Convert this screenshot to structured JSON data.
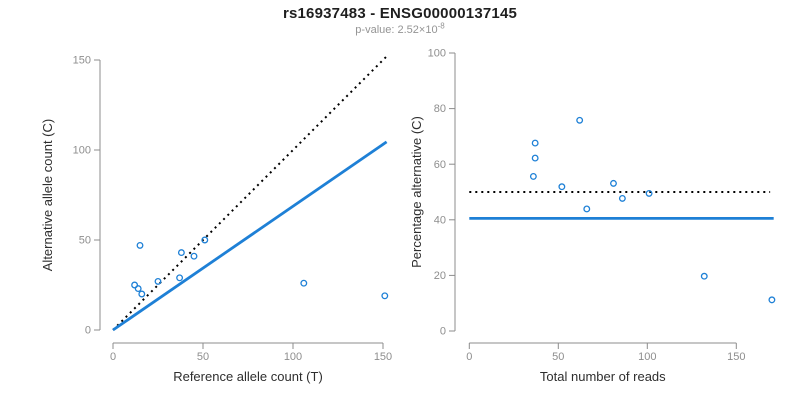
{
  "header": {
    "title": "rs16937483 - ENSG00000137145",
    "p_value_label": "p-value: 2.52×10",
    "p_value_exponent": "-8"
  },
  "theme": {
    "accent_blue": "#1E80D6",
    "dotted_black": "#000000",
    "axis_color": "#8C8C8C",
    "tick_label_color": "#8E8E8E",
    "axis_label_color": "#2E2E2E",
    "title_color": "#1F1F1F",
    "subtitle_color": "#949494",
    "background": "#FFFFFF"
  },
  "chart_data": [
    {
      "id": "ref-vs-alt-scatter",
      "type": "scatter",
      "xlabel": "Reference allele count (T)",
      "ylabel": "Alternative allele count (C)",
      "xticks": [
        0,
        50,
        100,
        150
      ],
      "yticks": [
        0,
        50,
        100,
        150
      ],
      "xlim": [
        0,
        152
      ],
      "ylim": [
        0,
        152
      ],
      "grid": false,
      "legend": "none",
      "point_color": "#1E80D6",
      "points": [
        [
          12,
          25
        ],
        [
          14,
          23
        ],
        [
          16,
          20
        ],
        [
          15,
          47
        ],
        [
          25,
          27
        ],
        [
          37,
          29
        ],
        [
          38,
          43
        ],
        [
          45,
          41
        ],
        [
          51,
          50
        ],
        [
          106,
          26
        ],
        [
          151,
          19
        ]
      ],
      "lines": [
        {
          "name": "identity-line",
          "style": "dotted",
          "color": "#000000",
          "from": [
            0,
            0
          ],
          "to": [
            152,
            152
          ]
        },
        {
          "name": "regression-line",
          "style": "solid",
          "color": "#1E80D6",
          "from": [
            0,
            0
          ],
          "to": [
            152,
            104.5
          ]
        }
      ]
    },
    {
      "id": "reads-vs-percentage-scatter",
      "type": "scatter",
      "xlabel": "Total number of reads",
      "ylabel": "Percentage alternative (C)",
      "xticks": [
        0,
        50,
        100,
        150
      ],
      "yticks": [
        0,
        20,
        40,
        60,
        80,
        100
      ],
      "xlim": [
        0,
        172
      ],
      "ylim": [
        0,
        100
      ],
      "grid": false,
      "legend": "none",
      "point_color": "#1E80D6",
      "points": [
        [
          37,
          67.6
        ],
        [
          37,
          62.2
        ],
        [
          36,
          55.6
        ],
        [
          62,
          75.8
        ],
        [
          52,
          51.9
        ],
        [
          66,
          43.9
        ],
        [
          81,
          53.1
        ],
        [
          86,
          47.7
        ],
        [
          101,
          49.5
        ],
        [
          132,
          19.7
        ],
        [
          170,
          11.2
        ]
      ],
      "lines": [
        {
          "name": "fifty-percent-line",
          "style": "dotted",
          "color": "#000000",
          "from": [
            0,
            50
          ],
          "to": [
            169,
            50
          ]
        },
        {
          "name": "mean-percentage-line",
          "style": "solid",
          "color": "#1E80D6",
          "from": [
            0,
            40.5
          ],
          "to": [
            171,
            40.5
          ]
        }
      ]
    }
  ]
}
